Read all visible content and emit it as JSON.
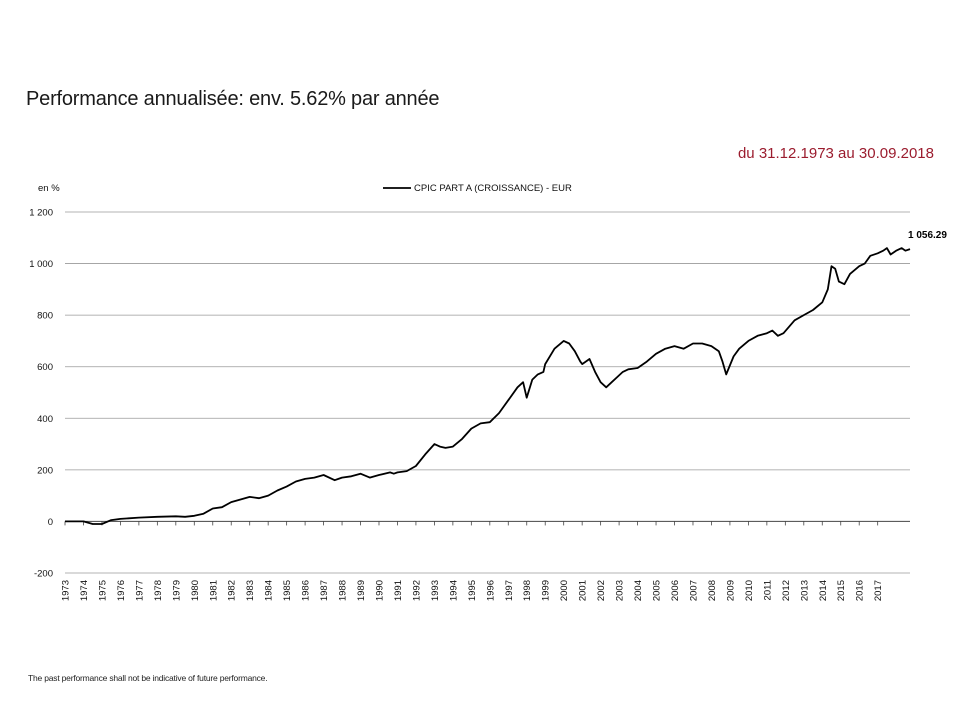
{
  "page": {
    "title": "Performance annualisée: env. 5.62% par année",
    "period": "du 31.12.1973 au 30.09.2018",
    "disclaimer": "The past performance shall not be indicative of future performance."
  },
  "chart_data": {
    "type": "line",
    "title": "",
    "ylabel": "en %",
    "xlabel": "",
    "ylim": [
      -200,
      1200
    ],
    "xlim": [
      1973.0,
      2018.75
    ],
    "y_ticks": [
      1200,
      1000,
      800,
      600,
      400,
      200,
      0,
      -200
    ],
    "y_tick_labels": [
      "1 200",
      "1 000",
      "800",
      "600",
      "400",
      "200",
      "0",
      "-200"
    ],
    "x_tick_labels": [
      "1973",
      "1974",
      "1975",
      "1976",
      "1977",
      "1978",
      "1979",
      "1980",
      "1981",
      "1982",
      "1983",
      "1984",
      "1985",
      "1986",
      "1987",
      "1988",
      "1989",
      "1990",
      "1991",
      "1992",
      "1993",
      "1994",
      "1995",
      "1996",
      "1997",
      "1998",
      "1999",
      "2000",
      "2001",
      "2002",
      "2003",
      "2004",
      "2005",
      "2006",
      "2007",
      "2008",
      "2009",
      "2010",
      "2011",
      "2012",
      "2013",
      "2014",
      "2015",
      "2016",
      "2017"
    ],
    "grid": "horizontal",
    "legend": "top-center",
    "series": [
      {
        "name": "CPIC PART A (CROISSANCE) - EUR",
        "color": "#000000",
        "end_label": "1 056.29",
        "x": [
          1973.0,
          1974.0,
          1974.5,
          1975.0,
          1975.5,
          1976.0,
          1977.0,
          1978.0,
          1979.0,
          1979.5,
          1980.0,
          1980.5,
          1981.0,
          1981.5,
          1982.0,
          1982.5,
          1983.0,
          1983.5,
          1984.0,
          1984.5,
          1985.0,
          1985.5,
          1986.0,
          1986.5,
          1987.0,
          1987.6,
          1987.8,
          1988.0,
          1988.5,
          1989.0,
          1989.5,
          1990.0,
          1990.6,
          1990.8,
          1991.0,
          1991.5,
          1992.0,
          1992.5,
          1993.0,
          1993.3,
          1993.6,
          1994.0,
          1994.5,
          1995.0,
          1995.5,
          1996.0,
          1996.5,
          1997.0,
          1997.5,
          1997.8,
          1998.0,
          1998.3,
          1998.6,
          1998.9,
          1999.0,
          1999.5,
          2000.0,
          2000.3,
          2000.6,
          2000.9,
          2001.0,
          2001.4,
          2001.7,
          2002.0,
          2002.3,
          2002.6,
          2002.9,
          2003.2,
          2003.5,
          2004.0,
          2004.5,
          2005.0,
          2005.5,
          2006.0,
          2006.5,
          2007.0,
          2007.5,
          2008.0,
          2008.4,
          2008.6,
          2008.8,
          2009.2,
          2009.5,
          2010.0,
          2010.5,
          2011.0,
          2011.3,
          2011.6,
          2011.9,
          2012.5,
          2013.0,
          2013.5,
          2014.0,
          2014.3,
          2014.5,
          2014.7,
          2014.9,
          2015.2,
          2015.5,
          2016.0,
          2016.3,
          2016.6,
          2017.0,
          2017.3,
          2017.5,
          2017.7,
          2018.0,
          2018.3,
          2018.5,
          2018.75
        ],
        "y": [
          0,
          0,
          -10,
          -10,
          5,
          10,
          15,
          18,
          20,
          18,
          22,
          30,
          50,
          55,
          75,
          85,
          95,
          90,
          100,
          120,
          135,
          155,
          165,
          170,
          180,
          160,
          165,
          170,
          175,
          185,
          170,
          180,
          190,
          185,
          190,
          195,
          215,
          260,
          300,
          290,
          285,
          290,
          320,
          360,
          380,
          385,
          420,
          470,
          520,
          540,
          480,
          550,
          570,
          580,
          610,
          670,
          700,
          690,
          660,
          620,
          610,
          630,
          580,
          540,
          520,
          540,
          560,
          580,
          590,
          595,
          620,
          650,
          670,
          680,
          670,
          690,
          690,
          680,
          660,
          620,
          570,
          640,
          670,
          700,
          720,
          730,
          740,
          720,
          730,
          780,
          800,
          820,
          850,
          900,
          990,
          980,
          930,
          920,
          960,
          990,
          1000,
          1030,
          1040,
          1050,
          1060,
          1035,
          1050,
          1060,
          1050,
          1056.29
        ]
      }
    ]
  }
}
